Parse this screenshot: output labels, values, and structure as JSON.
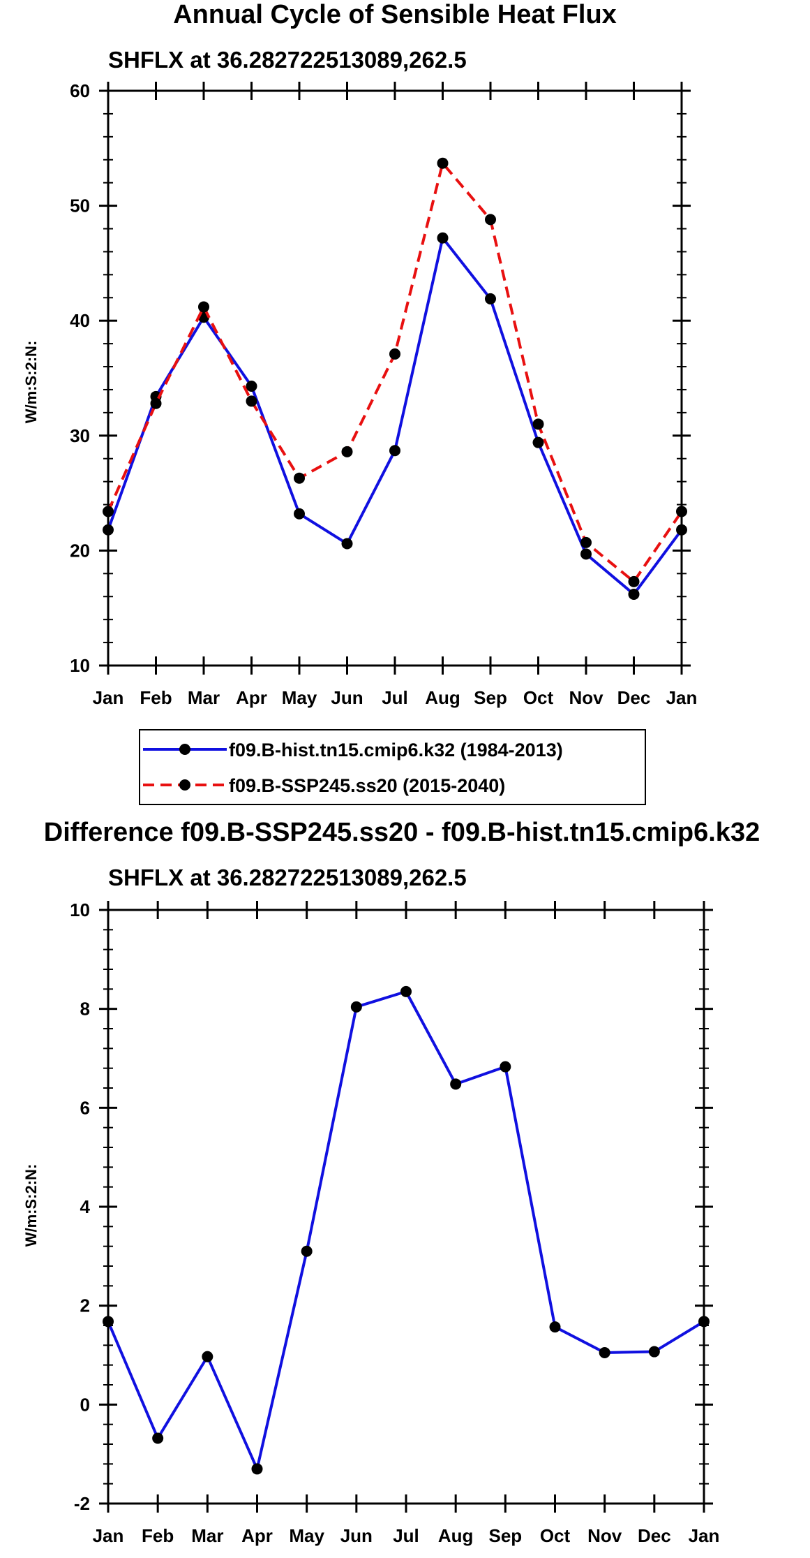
{
  "chart_data": [
    {
      "id": "top",
      "type": "line",
      "title": "Annual Cycle of Sensible Heat Flux",
      "subtitle": "SHFLX at 36.282722513089,262.5",
      "xlabel": "",
      "ylabel": "W/m:S:2:N:",
      "categories": [
        "Jan",
        "Feb",
        "Mar",
        "Apr",
        "May",
        "Jun",
        "Jul",
        "Aug",
        "Sep",
        "Oct",
        "Nov",
        "Dec",
        "Jan"
      ],
      "ylim": [
        10,
        60
      ],
      "yticks": [
        10,
        20,
        30,
        40,
        50,
        60
      ],
      "series": [
        {
          "name": "f09.B-hist.tn15.cmip6.k32 (1984-2013)",
          "color": "#1010e0",
          "dash": "solid",
          "values": [
            21.8,
            33.4,
            40.3,
            34.3,
            23.2,
            20.6,
            28.7,
            47.2,
            41.9,
            29.4,
            19.7,
            16.2,
            21.8
          ]
        },
        {
          "name": "f09.B-SSP245.ss20 (2015-2040)",
          "color": "#e81010",
          "dash": "dashed",
          "values": [
            23.4,
            32.8,
            41.2,
            33.0,
            26.3,
            28.6,
            37.1,
            53.7,
            48.8,
            31.0,
            20.7,
            17.3,
            23.4
          ]
        }
      ]
    },
    {
      "id": "bottom",
      "type": "line",
      "title": "Difference f09.B-SSP245.ss20 - f09.B-hist.tn15.cmip6.k32",
      "subtitle": "SHFLX at 36.282722513089,262.5",
      "xlabel": "",
      "ylabel": "W/m:S:2:N:",
      "categories": [
        "Jan",
        "Feb",
        "Mar",
        "Apr",
        "May",
        "Jun",
        "Jul",
        "Aug",
        "Sep",
        "Oct",
        "Nov",
        "Dec",
        "Jan"
      ],
      "ylim": [
        -2,
        10
      ],
      "yticks": [
        -2,
        0,
        2,
        4,
        6,
        8,
        10
      ],
      "series": [
        {
          "name": "Difference",
          "color": "#1010e0",
          "dash": "solid",
          "values": [
            1.68,
            -0.68,
            0.97,
            -1.3,
            3.1,
            8.04,
            8.35,
            6.48,
            6.83,
            1.57,
            1.05,
            1.07,
            1.68
          ]
        }
      ]
    }
  ]
}
